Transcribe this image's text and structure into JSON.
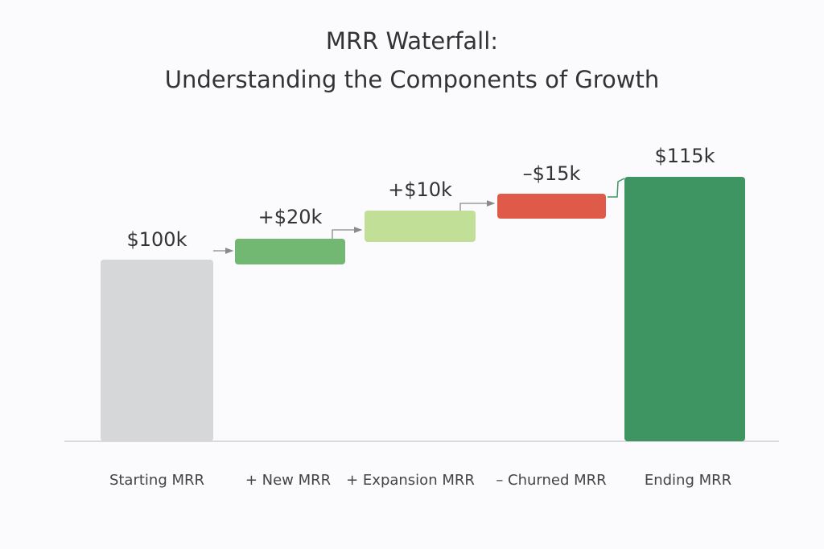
{
  "chart_data": {
    "type": "bar",
    "subtype": "waterfall",
    "title": [
      "MRR Waterfall:",
      "Understanding the Components of Growth"
    ],
    "categories": [
      "Starting MRR",
      "+ New MRR",
      "+ Expansion MRR",
      "– Churned MRR",
      "Ending MRR"
    ],
    "values": [
      100,
      20,
      10,
      -15,
      115
    ],
    "data_labels": [
      "$100k",
      "+$20k",
      "+$10k",
      "–$15k",
      "$115k"
    ],
    "unit": "$k",
    "grid": false,
    "colors": [
      "#d5d7d8",
      "#72b872",
      "#c2df98",
      "#e05a4a",
      "#3f9561"
    ]
  }
}
